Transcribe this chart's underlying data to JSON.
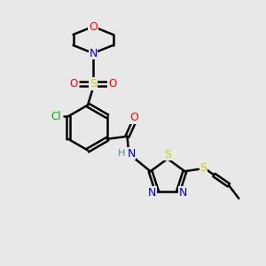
{
  "background_color": "#e8e8e8",
  "bond_color": "#000000",
  "atom_colors": {
    "O": "#ff0000",
    "N": "#0000cc",
    "S": "#cccc00",
    "Cl": "#00aa00",
    "H": "#4a9090",
    "C": "#000000"
  },
  "line_width": 1.8,
  "figsize": [
    3.0,
    3.0
  ],
  "dpi": 100
}
